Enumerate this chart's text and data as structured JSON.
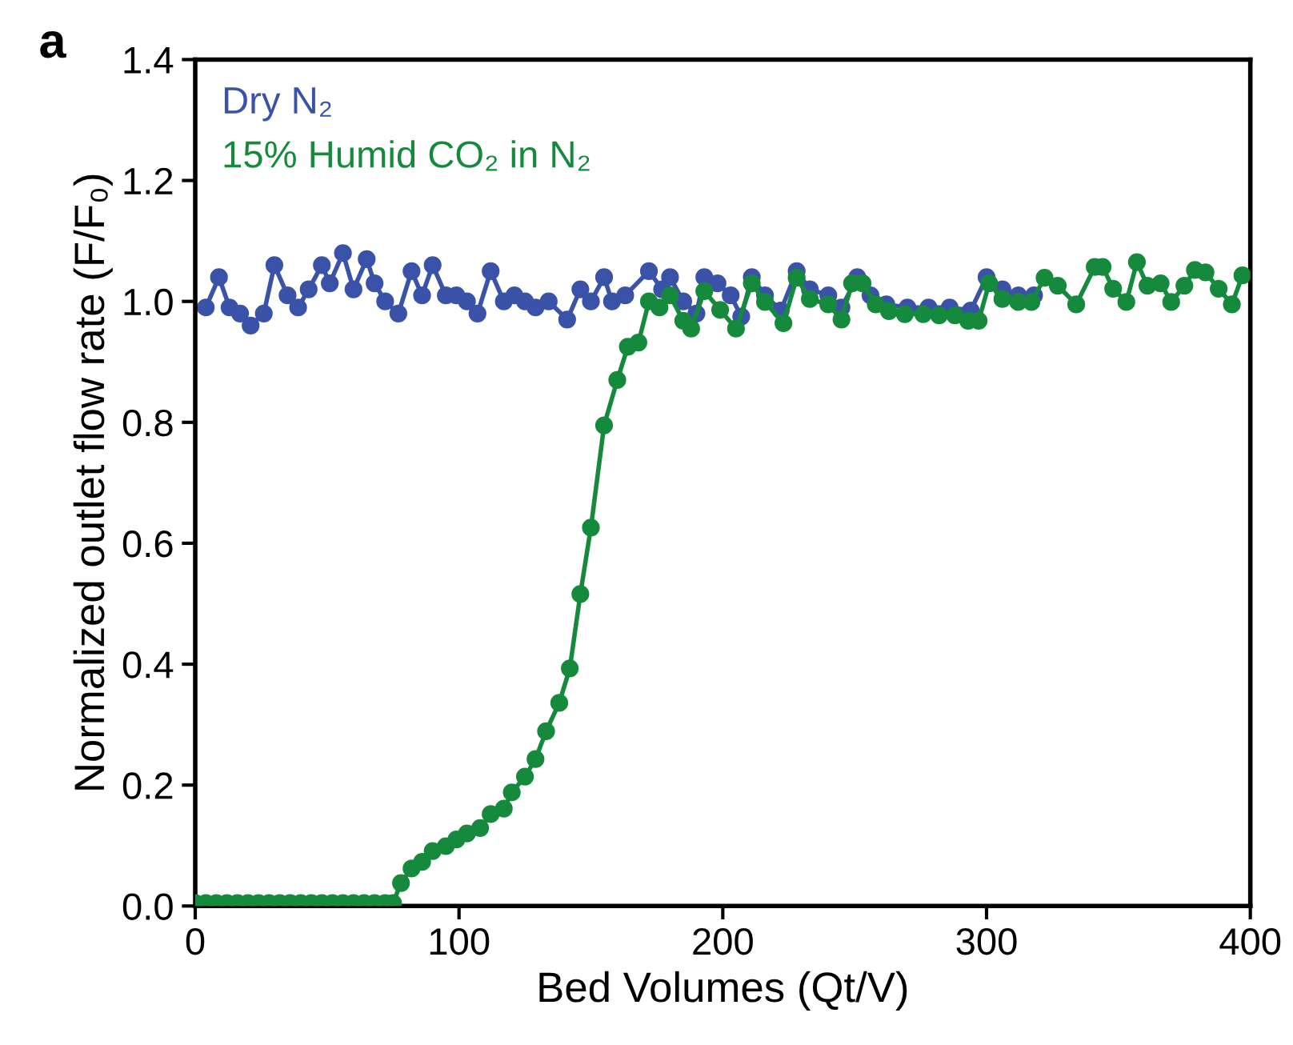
{
  "chart_data": {
    "type": "line",
    "xlabel": "Bed Volumes (Qt/V)",
    "ylabel": "Normalized outlet flow rate (F/F₀)",
    "annotations": [
      "a"
    ],
    "xlim": [
      0,
      400
    ],
    "xticks": [
      0,
      100,
      200,
      300,
      400
    ],
    "ylim": [
      0,
      1.4
    ],
    "yticks": [
      {
        "value": 0,
        "label": "0.0"
      },
      {
        "value": 0.2,
        "label": "0.2"
      },
      {
        "value": 0.4,
        "label": "0.4"
      },
      {
        "value": 0.6,
        "label": "0.6"
      },
      {
        "value": 0.8,
        "label": "0.8"
      },
      {
        "value": 1,
        "label": "1.0"
      },
      {
        "value": 1.2,
        "label": "1.2"
      },
      {
        "value": 1.4,
        "label": "1.4"
      }
    ],
    "grid": false,
    "legend": "top left",
    "marker": "circle",
    "line_style": "solid",
    "series": [
      {
        "name": "Dry N₂",
        "color": "#3a52a8",
        "x": [
          4,
          9,
          13,
          17,
          21,
          26,
          30,
          35,
          39,
          43,
          48,
          51,
          56,
          60,
          65,
          68,
          72,
          77,
          82,
          86,
          90,
          95,
          99,
          103,
          107,
          112,
          117,
          121,
          125,
          129,
          134,
          141,
          146,
          150,
          155,
          158,
          163,
          172,
          177,
          180,
          185,
          190,
          193,
          198,
          203,
          207,
          211,
          216,
          222,
          228,
          233,
          240,
          245,
          251,
          256,
          262,
          270,
          278,
          286,
          294,
          300,
          306,
          312,
          318
        ],
        "values": [
          0.99,
          1.04,
          0.99,
          0.98,
          0.96,
          0.98,
          1.06,
          1.01,
          0.99,
          1.02,
          1.06,
          1.03,
          1.08,
          1.02,
          1.07,
          1.03,
          1.0,
          0.98,
          1.05,
          1.01,
          1.06,
          1.01,
          1.01,
          1.0,
          0.98,
          1.05,
          1.0,
          1.01,
          1.0,
          0.99,
          1.0,
          0.97,
          1.02,
          1.0,
          1.04,
          1.0,
          1.01,
          1.05,
          1.02,
          1.04,
          1.0,
          0.98,
          1.04,
          1.03,
          1.01,
          0.975,
          1.04,
          1.01,
          0.985,
          1.05,
          1.02,
          1.01,
          0.99,
          1.04,
          1.01,
          0.995,
          0.99,
          0.99,
          0.99,
          0.985,
          1.04,
          1.02,
          1.01,
          1.01
        ]
      },
      {
        "name": "15% Humid CO₂ in N₂",
        "color": "#168a3c",
        "x": [
          0,
          4,
          8,
          12,
          16,
          20,
          24,
          28,
          32,
          36,
          40,
          44,
          48,
          52,
          56,
          60,
          64,
          68,
          72,
          75,
          78,
          82,
          86,
          90,
          95,
          99,
          103,
          108,
          112,
          117,
          120,
          125,
          129,
          133,
          138,
          142,
          146,
          150,
          155,
          160,
          164,
          168,
          172,
          176,
          180,
          185,
          188,
          193,
          199,
          205,
          211,
          216,
          223,
          228,
          233,
          240,
          245,
          249,
          253,
          258,
          263,
          269,
          276,
          282,
          288,
          293,
          297,
          301,
          306,
          312,
          317,
          322,
          327,
          334,
          341,
          344,
          348,
          353,
          357,
          361,
          366,
          370,
          375,
          379,
          383,
          388,
          393,
          397
        ],
        "values": [
          0.005,
          0.005,
          0.005,
          0.005,
          0.005,
          0.005,
          0.005,
          0.005,
          0.005,
          0.005,
          0.005,
          0.005,
          0.005,
          0.005,
          0.005,
          0.005,
          0.005,
          0.005,
          0.005,
          0.005,
          0.038,
          0.062,
          0.073,
          0.091,
          0.099,
          0.11,
          0.12,
          0.129,
          0.152,
          0.161,
          0.188,
          0.214,
          0.243,
          0.289,
          0.336,
          0.393,
          0.516,
          0.626,
          0.795,
          0.87,
          0.925,
          0.932,
          1.0,
          0.99,
          1.01,
          0.968,
          0.955,
          1.017,
          0.986,
          0.955,
          1.03,
          0.999,
          0.964,
          1.039,
          1.004,
          0.995,
          0.97,
          1.03,
          1.03,
          0.995,
          0.984,
          0.979,
          0.979,
          0.977,
          0.977,
          0.968,
          0.968,
          1.03,
          1.004,
          0.999,
          0.999,
          1.039,
          1.026,
          0.995,
          1.057,
          1.057,
          1.021,
          0.999,
          1.065,
          1.026,
          1.03,
          0.999,
          1.026,
          1.052,
          1.048,
          1.021,
          0.995,
          1.043
        ]
      }
    ]
  }
}
